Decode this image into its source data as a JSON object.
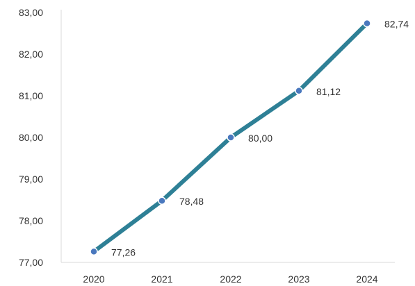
{
  "chart_data": {
    "type": "line",
    "title": "",
    "xlabel": "",
    "ylabel": "",
    "categories": [
      "2020",
      "2021",
      "2022",
      "2023",
      "2024"
    ],
    "series": [
      {
        "values": [
          77.26,
          78.48,
          80.0,
          81.12,
          82.74
        ],
        "data_labels": [
          "77,26",
          "78,48",
          "80,00",
          "81,12",
          "82,74"
        ],
        "color": "#2E8096",
        "marker_color": "#4A78BE"
      }
    ],
    "ylim": [
      77,
      83
    ],
    "y_ticks": [
      {
        "value": 77,
        "label": "77,00"
      },
      {
        "value": 78,
        "label": "78,00"
      },
      {
        "value": 79,
        "label": "79,00"
      },
      {
        "value": 80,
        "label": "80,00"
      },
      {
        "value": 81,
        "label": "81,00"
      },
      {
        "value": 82,
        "label": "82,00"
      },
      {
        "value": 83,
        "label": "83,00"
      }
    ],
    "grid": false,
    "legend": "none",
    "axis_color": "#D9D9D9"
  }
}
